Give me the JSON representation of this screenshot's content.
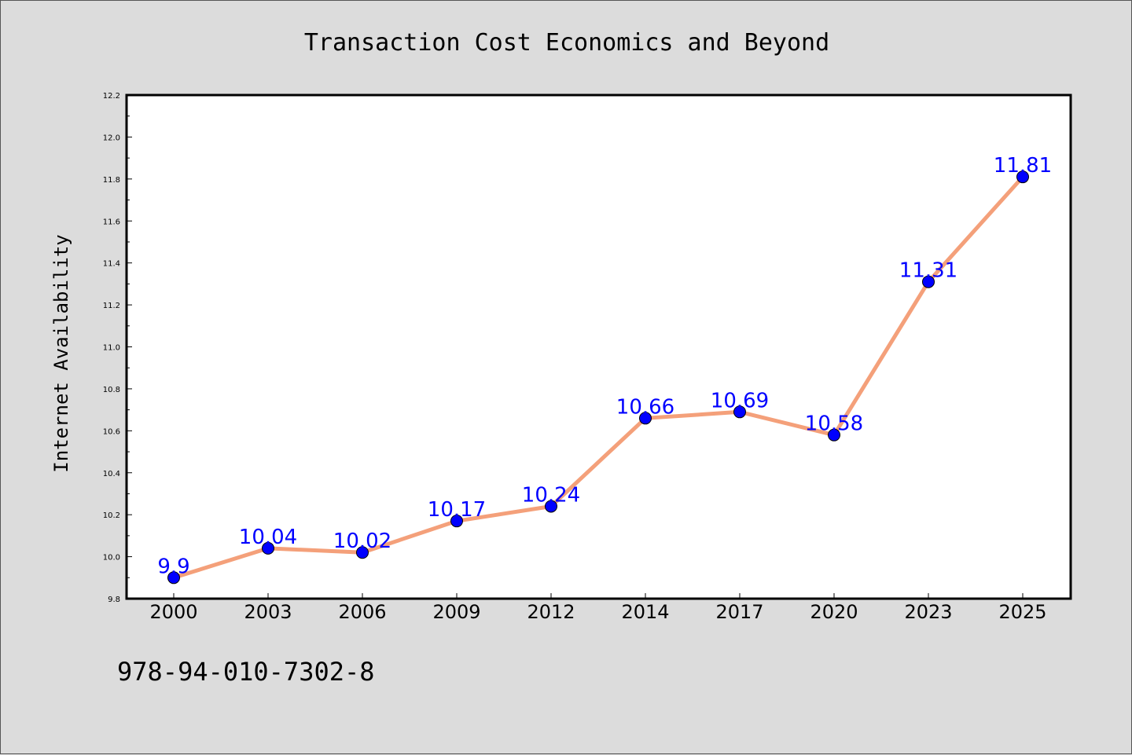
{
  "chart_data": {
    "type": "line",
    "title": "Transaction Cost Economics and Beyond",
    "xlabel": "",
    "ylabel": "Internet Availability",
    "categories": [
      "2000",
      "2003",
      "2006",
      "2009",
      "2012",
      "2014",
      "2017",
      "2020",
      "2023",
      "2025"
    ],
    "values": [
      9.9,
      10.04,
      10.02,
      10.17,
      10.24,
      10.66,
      10.69,
      10.58,
      11.31,
      11.81
    ],
    "data_labels": [
      "9.9",
      "10.04",
      "10.02",
      "10.17",
      "10.24",
      "10.66",
      "10.69",
      "10.58",
      "11.31",
      "11.81"
    ],
    "ylim": [
      9.8,
      12.2
    ],
    "yticks": [
      "9.8",
      "10.0",
      "10.2",
      "10.4",
      "10.6",
      "10.8",
      "11.0",
      "11.2",
      "11.4",
      "11.6",
      "11.8",
      "12.0",
      "12.2"
    ],
    "grid": false,
    "line_color": "#f4a07a",
    "marker_color": "#0000ff",
    "label_color": "#0000ff"
  },
  "footer": {
    "isbn": "978-94-010-7302-8"
  }
}
